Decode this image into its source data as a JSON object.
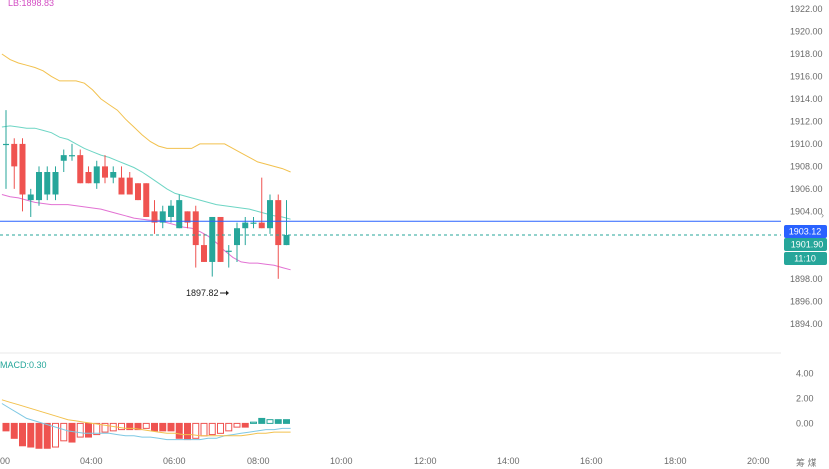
{
  "chart_data": [
    {
      "type": "candlestick",
      "indicator_label": "LB:1898.83",
      "y_axis": {
        "ticks": [
          "1922.00",
          "1920.00",
          "1918.00",
          "1916.00",
          "1914.00",
          "1912.00",
          "1910.00",
          "1908.00",
          "1906.00",
          "1904.00",
          "1902.00",
          "1900.00",
          "1898.00",
          "1896.00",
          "1894.00"
        ],
        "range": [
          1891.4,
          1922.8
        ]
      },
      "x_axis": {
        "ticks": [
          "00",
          "04:00",
          "06:00",
          "08:00",
          "10:00",
          "12:00",
          "14:00",
          "16:00",
          "18:00",
          "20:00"
        ]
      },
      "candles": [
        {
          "o": 1910.0,
          "h": 1913.0,
          "l": 1906.0,
          "c": 1910.0
        },
        {
          "o": 1910.0,
          "h": 1910.5,
          "l": 1906.0,
          "c": 1908.0
        },
        {
          "o": 1910.0,
          "h": 1910.5,
          "l": 1904.0,
          "c": 1905.5
        },
        {
          "o": 1905.0,
          "h": 1906.0,
          "l": 1903.5,
          "c": 1905.5
        },
        {
          "o": 1905.0,
          "h": 1908.0,
          "l": 1904.5,
          "c": 1907.5
        },
        {
          "o": 1905.5,
          "h": 1908.0,
          "l": 1905.0,
          "c": 1907.5
        },
        {
          "o": 1905.5,
          "h": 1908.0,
          "l": 1905.0,
          "c": 1907.5
        },
        {
          "o": 1908.5,
          "h": 1909.5,
          "l": 1907.5,
          "c": 1909.0
        },
        {
          "o": 1909.0,
          "h": 1910.0,
          "l": 1908.5,
          "c": 1909.0
        },
        {
          "o": 1909.0,
          "h": 1909.5,
          "l": 1906.5,
          "c": 1906.5
        },
        {
          "o": 1907.5,
          "h": 1908.0,
          "l": 1906.5,
          "c": 1906.5
        },
        {
          "o": 1906.5,
          "h": 1908.5,
          "l": 1906.0,
          "c": 1908.0
        },
        {
          "o": 1908.0,
          "h": 1909.0,
          "l": 1906.5,
          "c": 1907.0
        },
        {
          "o": 1907.0,
          "h": 1908.0,
          "l": 1906.5,
          "c": 1907.5
        },
        {
          "o": 1907.0,
          "h": 1908.0,
          "l": 1905.5,
          "c": 1905.5
        },
        {
          "o": 1907.0,
          "h": 1907.5,
          "l": 1905.5,
          "c": 1905.5
        },
        {
          "o": 1906.5,
          "h": 1906.5,
          "l": 1905.0,
          "c": 1905.0
        },
        {
          "o": 1906.5,
          "h": 1906.5,
          "l": 1903.5,
          "c": 1903.5
        },
        {
          "o": 1904.0,
          "h": 1905.0,
          "l": 1902.0,
          "c": 1903.0
        },
        {
          "o": 1903.0,
          "h": 1904.5,
          "l": 1902.5,
          "c": 1904.0
        },
        {
          "o": 1903.5,
          "h": 1905.0,
          "l": 1903.0,
          "c": 1904.5
        },
        {
          "o": 1902.5,
          "h": 1905.5,
          "l": 1902.5,
          "c": 1905.0
        },
        {
          "o": 1904.0,
          "h": 1904.0,
          "l": 1902.5,
          "c": 1903.0
        },
        {
          "o": 1904.0,
          "h": 1904.5,
          "l": 1899.0,
          "c": 1901.0
        },
        {
          "o": 1901.0,
          "h": 1902.0,
          "l": 1899.5,
          "c": 1899.5
        },
        {
          "o": 1899.5,
          "h": 1903.5,
          "l": 1898.2,
          "c": 1903.5
        },
        {
          "o": 1903.5,
          "h": 1903.5,
          "l": 1899.5,
          "c": 1899.5
        },
        {
          "o": 1900.5,
          "h": 1901.0,
          "l": 1899.0,
          "c": 1900.5
        },
        {
          "o": 1901.0,
          "h": 1903.0,
          "l": 1899.5,
          "c": 1902.5
        },
        {
          "o": 1902.5,
          "h": 1903.5,
          "l": 1901.0,
          "c": 1903.0
        },
        {
          "o": 1903.0,
          "h": 1903.5,
          "l": 1902.5,
          "c": 1903.0
        },
        {
          "o": 1903.0,
          "h": 1907.0,
          "l": 1902.5,
          "c": 1902.5
        },
        {
          "o": 1902.5,
          "h": 1905.5,
          "l": 1902.0,
          "c": 1905.0
        },
        {
          "o": 1905.0,
          "h": 1905.5,
          "l": 1898.0,
          "c": 1901.0
        },
        {
          "o": 1901.0,
          "h": 1905.0,
          "l": 1901.0,
          "c": 1901.9
        }
      ],
      "upper_band": [
        1918.0,
        1917.5,
        1917.2,
        1917.0,
        1916.8,
        1916.5,
        1916.0,
        1915.6,
        1915.6,
        1915.6,
        1915.4,
        1914.8,
        1914.0,
        1913.5,
        1913.0,
        1912.2,
        1911.5,
        1910.8,
        1910.2,
        1909.8,
        1909.6,
        1909.6,
        1909.6,
        1909.6,
        1910.0,
        1910.0,
        1910.0,
        1910.0,
        1909.6,
        1909.2,
        1908.8,
        1908.4,
        1908.2,
        1908.0,
        1907.8,
        1907.5
      ],
      "middle_band": [
        1911.5,
        1911.6,
        1911.5,
        1911.4,
        1911.4,
        1911.2,
        1911.0,
        1910.6,
        1910.4,
        1910.0,
        1909.6,
        1909.3,
        1909.0,
        1908.8,
        1908.5,
        1908.2,
        1907.9,
        1907.5,
        1907.0,
        1906.5,
        1906.0,
        1905.6,
        1905.4,
        1905.2,
        1905.0,
        1904.8,
        1904.6,
        1904.5,
        1904.4,
        1904.3,
        1904.2,
        1904.0,
        1903.8,
        1903.6,
        1903.5,
        1903.3
      ],
      "lower_band": [
        1905.5,
        1905.3,
        1905.2,
        1905.0,
        1904.8,
        1904.7,
        1904.6,
        1904.6,
        1904.6,
        1904.5,
        1904.4,
        1904.3,
        1904.2,
        1904.0,
        1903.8,
        1903.6,
        1903.4,
        1903.3,
        1903.2,
        1903.2,
        1903.0,
        1902.8,
        1902.6,
        1902.5,
        1902.2,
        1901.8,
        1901.2,
        1900.5,
        1899.9,
        1899.5,
        1899.4,
        1899.4,
        1899.3,
        1899.2,
        1899.0,
        1898.8
      ],
      "current_price_label": "1903.12",
      "last_price_label": "1901.90",
      "countdown_label": "11:10",
      "low_annotation": "1897.82"
    },
    {
      "type": "bar",
      "label": "MACD:0.30",
      "y_axis": {
        "ticks": [
          "4.00",
          "2.00",
          "0.00"
        ],
        "range": [
          -2.3,
          5.5
        ]
      },
      "histogram": [
        -0.6,
        -1.2,
        -1.8,
        -1.9,
        -2.0,
        -2.0,
        -1.9,
        -1.4,
        -1.5,
        -1.1,
        -1.1,
        -0.9,
        -0.7,
        -0.6,
        -0.5,
        -0.5,
        -0.5,
        -0.4,
        -0.6,
        -0.6,
        -0.6,
        -1.2,
        -1.3,
        -1.2,
        -1.0,
        -0.9,
        -0.8,
        -0.6,
        -0.3,
        -0.3,
        0.1,
        0.4,
        0.3,
        0.3,
        0.3
      ],
      "macd_line": [
        1.6,
        1.2,
        0.8,
        0.4,
        0.2,
        0.0,
        -0.2,
        -0.4,
        -0.6,
        -0.7,
        -0.8,
        -0.8,
        -0.8,
        -0.8,
        -0.9,
        -1.0,
        -1.0,
        -1.1,
        -1.1,
        -1.2,
        -1.3,
        -1.3,
        -1.3,
        -1.3,
        -1.3,
        -1.2,
        -1.2,
        -1.0,
        -0.9,
        -0.8,
        -0.7,
        -0.6,
        -0.5,
        -0.5,
        -0.4,
        -0.4
      ],
      "signal_line": [
        1.9,
        1.7,
        1.5,
        1.3,
        1.1,
        0.9,
        0.7,
        0.5,
        0.3,
        0.2,
        0.1,
        0.0,
        -0.1,
        -0.2,
        -0.3,
        -0.4,
        -0.4,
        -0.5,
        -0.6,
        -0.7,
        -0.8,
        -0.8,
        -0.9,
        -0.9,
        -1.0,
        -1.0,
        -1.0,
        -1.0,
        -1.0,
        -1.0,
        -0.9,
        -0.8,
        -0.8,
        -0.7,
        -0.7,
        -0.7
      ]
    }
  ],
  "colors": {
    "bull": "#26a69a",
    "bear": "#ef5350",
    "upper_band": "#f2c14e",
    "middle_band": "#6dd5c4",
    "lower_band": "#e272d3",
    "current_price": "#2962ff",
    "last_price": "#26a69a",
    "indicator_label": "#d34fc4",
    "macd_label": "#26a69a",
    "macd_line": "#7ec8e3",
    "signal_line": "#f2c14e"
  },
  "corner_glyphs": "筹 煤",
  "arrow_glyph": "›"
}
